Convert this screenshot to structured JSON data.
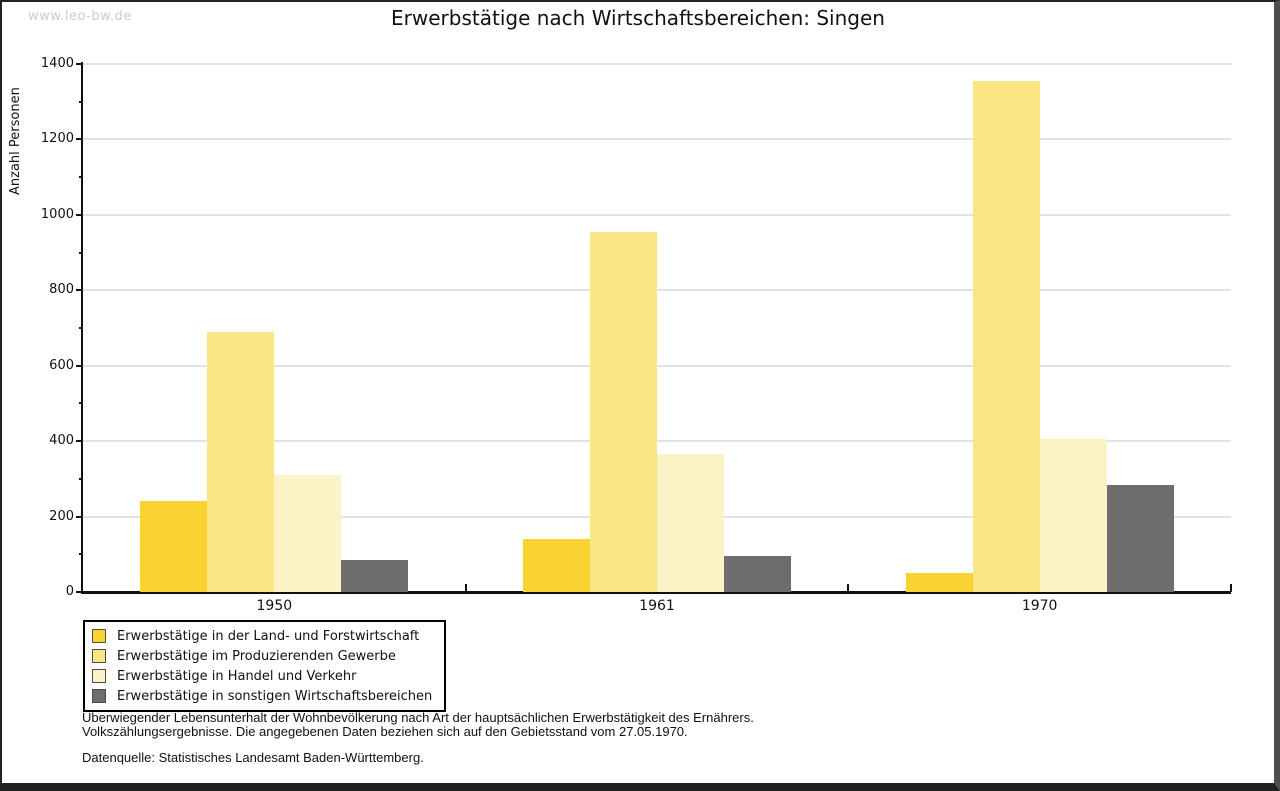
{
  "watermark": "www.leo-bw.de",
  "title": "Erwerbstätige nach Wirtschaftsbereichen: Singen",
  "chart_data": {
    "type": "bar",
    "title": "Erwerbstätige nach Wirtschaftsbereichen: Singen",
    "xlabel": "",
    "ylabel": "Anzahl Personen",
    "ylim": [
      0,
      1400
    ],
    "ytick_step": 200,
    "ytick_labels": [
      "0",
      "200",
      "400",
      "600",
      "800",
      "1000",
      "1200",
      "1400"
    ],
    "grid": true,
    "legend_position": "bottom-left",
    "categories": [
      "1950",
      "1961",
      "1970"
    ],
    "series": [
      {
        "name": "Erwerbstätige in der Land- und Forstwirtschaft",
        "color": "#fbd330",
        "values": [
          240,
          140,
          50
        ]
      },
      {
        "name": "Erwerbstätige im Produzierenden Gewerbe",
        "color": "#fbe685",
        "values": [
          690,
          955,
          1355
        ]
      },
      {
        "name": "Erwerbstätige in Handel und Verkehr",
        "color": "#fbf2c5",
        "values": [
          310,
          365,
          405
        ]
      },
      {
        "name": "Erwerbstätige in sonstigen Wirtschaftsbereichen",
        "color": "#6d6d6d",
        "values": [
          85,
          95,
          285
        ]
      }
    ]
  },
  "footnotes": {
    "line1": "Überwiegender Lebensunterhalt der Wohnbevölkerung nach Art der hauptsächlichen Erwerbstätigkeit des Ernährers.",
    "line2": "Volkszählungsergebnisse. Die angegebenen Daten beziehen sich auf den Gebietsstand vom 27.05.1970.",
    "source": "Datenquelle: Statistisches Landesamt Baden-Württemberg."
  }
}
